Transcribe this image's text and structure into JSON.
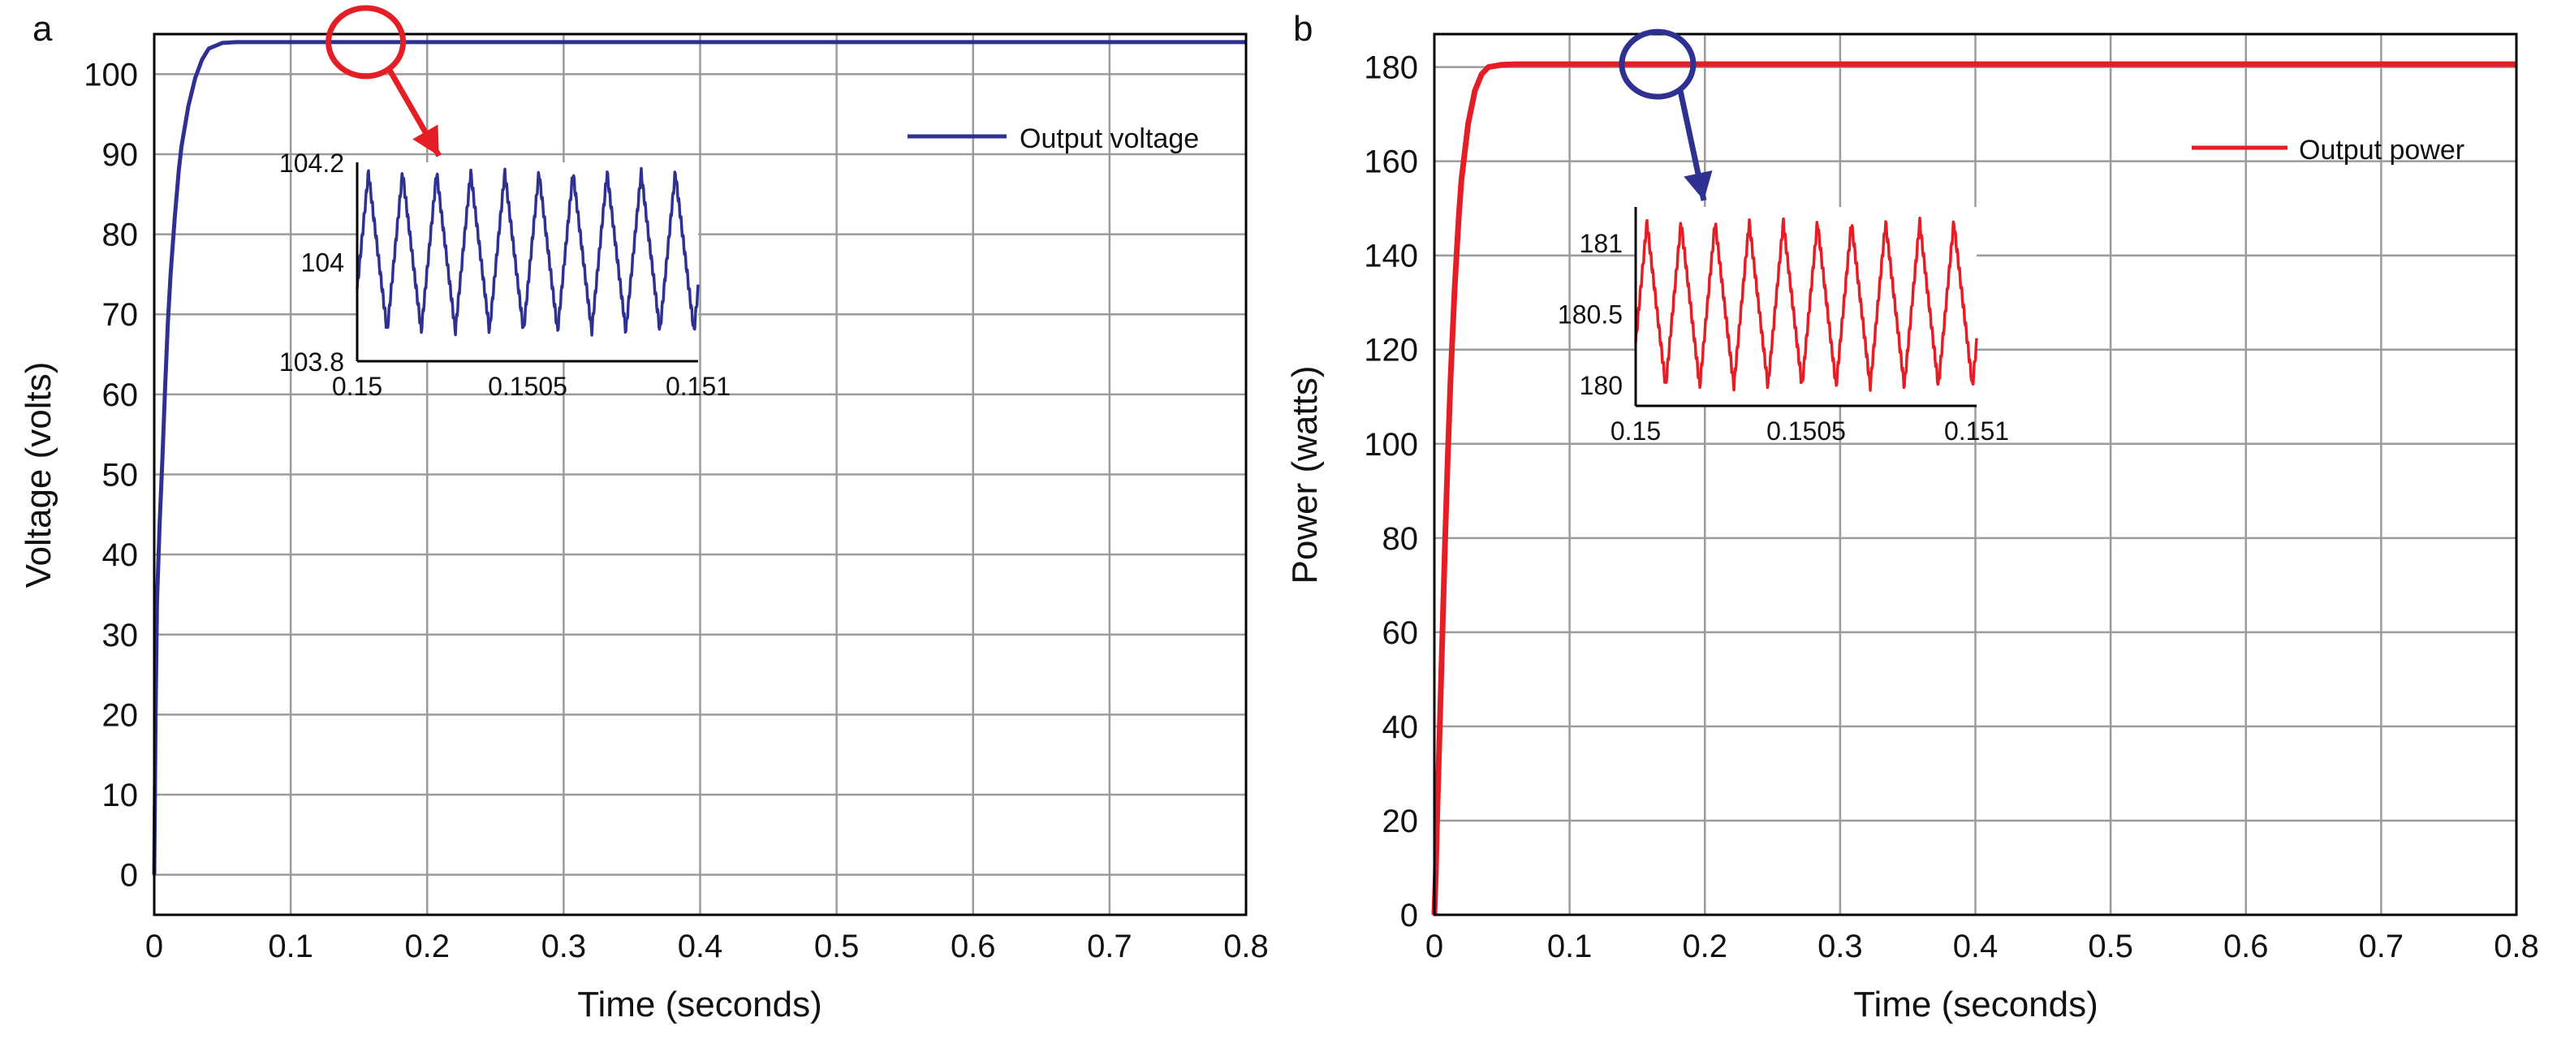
{
  "chart_data": [
    {
      "panel_label": "a",
      "type": "line",
      "title": "",
      "xlabel": "Time (seconds)",
      "ylabel": "Voltage (volts)",
      "xlim": [
        0,
        0.8
      ],
      "ylim": [
        -5,
        105
      ],
      "x_ticks": [
        "0",
        "0.1",
        "0.2",
        "0.3",
        "0.4",
        "0.5",
        "0.6",
        "0.7",
        "0.8"
      ],
      "x_tick_values": [
        0,
        0.1,
        0.2,
        0.3,
        0.4,
        0.5,
        0.6,
        0.7,
        0.8
      ],
      "y_ticks": [
        "0",
        "10",
        "20",
        "30",
        "40",
        "50",
        "60",
        "70",
        "80",
        "90",
        "100"
      ],
      "y_tick_values": [
        0,
        10,
        20,
        30,
        40,
        50,
        60,
        70,
        80,
        90,
        100
      ],
      "grid": true,
      "legend_position": "top-right",
      "series": [
        {
          "name": "Output voltage",
          "color": "#2e3192",
          "x": [
            0,
            0.001,
            0.002,
            0.004,
            0.006,
            0.008,
            0.01,
            0.012,
            0.015,
            0.018,
            0.02,
            0.025,
            0.03,
            0.035,
            0.04,
            0.05,
            0.06,
            0.07,
            0.1,
            0.2,
            0.4,
            0.6,
            0.8
          ],
          "y": [
            0,
            20,
            34,
            44,
            52,
            61,
            69,
            75,
            82,
            88,
            91,
            96,
            99.5,
            101.8,
            103.2,
            103.9,
            104,
            104,
            104,
            104,
            104,
            104,
            104
          ]
        }
      ],
      "highlight": {
        "shape": "circle",
        "color": "#e51d25",
        "center_data": [
          0.155,
          104
        ]
      },
      "inset": {
        "type": "line",
        "xlim": [
          0.15,
          0.151
        ],
        "ylim": [
          103.8,
          104.2
        ],
        "x_ticks": [
          "0.15",
          "0.1505",
          "0.151"
        ],
        "x_tick_values": [
          0.15,
          0.1505,
          0.151
        ],
        "y_ticks": [
          "103.8",
          "104",
          "104.2"
        ],
        "y_tick_values": [
          103.8,
          104,
          104.2
        ],
        "ripple_min": 103.85,
        "ripple_max": 104.19,
        "ripple_cycles": 10,
        "line_color": "#2e3192",
        "arrow_color": "#e51d25"
      }
    },
    {
      "panel_label": "b",
      "type": "line",
      "title": "",
      "xlabel": "Time (seconds)",
      "ylabel": "Power (watts)",
      "xlim": [
        0,
        0.8
      ],
      "ylim": [
        0,
        187
      ],
      "x_ticks": [
        "0",
        "0.1",
        "0.2",
        "0.3",
        "0.4",
        "0.5",
        "0.6",
        "0.7",
        "0.8"
      ],
      "x_tick_values": [
        0,
        0.1,
        0.2,
        0.3,
        0.4,
        0.5,
        0.6,
        0.7,
        0.8
      ],
      "y_ticks": [
        "0",
        "20",
        "40",
        "60",
        "80",
        "100",
        "120",
        "140",
        "160",
        "180"
      ],
      "y_tick_values": [
        0,
        20,
        40,
        60,
        80,
        100,
        120,
        140,
        160,
        180
      ],
      "grid": true,
      "legend_position": "top-right",
      "series": [
        {
          "name": "Output power",
          "color": "#e51d25",
          "x": [
            0,
            0.001,
            0.002,
            0.004,
            0.006,
            0.008,
            0.01,
            0.012,
            0.015,
            0.018,
            0.02,
            0.025,
            0.03,
            0.035,
            0.04,
            0.05,
            0.06,
            0.07,
            0.1,
            0.2,
            0.4,
            0.6,
            0.8
          ],
          "y": [
            0,
            8,
            20,
            40,
            60,
            80,
            98,
            114,
            133,
            148,
            156,
            168,
            175,
            178.5,
            180,
            180.5,
            180.6,
            180.6,
            180.6,
            180.6,
            180.6,
            180.6,
            180.6
          ]
        }
      ],
      "highlight": {
        "shape": "circle",
        "color": "#2e3192",
        "center_data": [
          0.165,
          180.6
        ]
      },
      "inset": {
        "type": "line",
        "xlim": [
          0.15,
          0.151
        ],
        "ylim": [
          179.85,
          181.25
        ],
        "x_ticks": [
          "0.15",
          "0.1505",
          "0.151"
        ],
        "x_tick_values": [
          0.15,
          0.1505,
          0.151
        ],
        "y_ticks": [
          "180",
          "180.5",
          "181"
        ],
        "y_tick_values": [
          180,
          180.5,
          181
        ],
        "ripple_min": 179.95,
        "ripple_max": 181.18,
        "ripple_cycles": 10,
        "line_color": "#e51d25",
        "arrow_color": "#2e3192"
      }
    }
  ]
}
